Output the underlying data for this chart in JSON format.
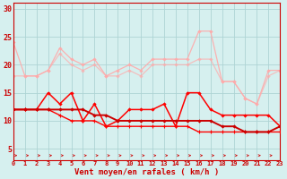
{
  "x": [
    0,
    1,
    2,
    3,
    4,
    5,
    6,
    7,
    8,
    9,
    10,
    11,
    12,
    13,
    14,
    15,
    16,
    17,
    18,
    19,
    20,
    21,
    22,
    23
  ],
  "line1": [
    24,
    18,
    18,
    19,
    23,
    21,
    20,
    21,
    18,
    19,
    20,
    19,
    21,
    21,
    21,
    21,
    26,
    26,
    17,
    17,
    14,
    13,
    19,
    19
  ],
  "line2": [
    18,
    18,
    18,
    19,
    22,
    20,
    19,
    20,
    18,
    18,
    19,
    18,
    20,
    20,
    20,
    20,
    21,
    21,
    17,
    17,
    14,
    13,
    18,
    19
  ],
  "line3": [
    12,
    12,
    12,
    15,
    13,
    15,
    10,
    13,
    9,
    10,
    12,
    12,
    12,
    13,
    9,
    15,
    15,
    12,
    11,
    11,
    11,
    11,
    11,
    9
  ],
  "line4": [
    12,
    12,
    12,
    12,
    12,
    12,
    12,
    11,
    11,
    10,
    10,
    10,
    10,
    10,
    10,
    10,
    10,
    10,
    9,
    9,
    8,
    8,
    8,
    9
  ],
  "line5": [
    12,
    12,
    12,
    12,
    11,
    10,
    10,
    10,
    9,
    9,
    9,
    9,
    9,
    9,
    9,
    9,
    8,
    8,
    8,
    8,
    8,
    8,
    8,
    8
  ],
  "bg_color": "#d6f0ef",
  "grid_color": "#aed4d4",
  "line1_color": "#ffaaaa",
  "line2_color": "#ffaaaa",
  "line3_color": "#ff0000",
  "line4_color": "#cc0000",
  "line5_color": "#ff0000",
  "xlabel": "Vent moyen/en rafales ( km/h )",
  "ylim": [
    3,
    31
  ],
  "yticks": [
    5,
    10,
    15,
    20,
    25,
    30
  ],
  "xlim": [
    0,
    23
  ]
}
